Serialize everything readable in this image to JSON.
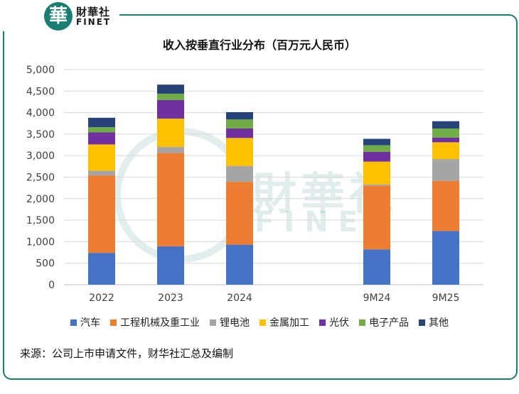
{
  "brand": {
    "logo_char": "華",
    "name_cn": "財華社",
    "name_en": "FINET",
    "color": "#1a7d72"
  },
  "chart_data": {
    "type": "bar",
    "stacked": true,
    "title": "收入按垂直行业分布（百万元人民币）",
    "categories": [
      "2022",
      "2023",
      "2024",
      "9M24",
      "9M25"
    ],
    "ylim": [
      0,
      5000
    ],
    "yticks": [
      "0",
      "500",
      "1,000",
      "1,500",
      "2,000",
      "2,500",
      "3,000",
      "3,500",
      "4,000",
      "4,500",
      "5,000"
    ],
    "ytick_values": [
      0,
      500,
      1000,
      1500,
      2000,
      2500,
      3000,
      3500,
      4000,
      4500,
      5000
    ],
    "grid": true,
    "legend_position": "bottom",
    "series": [
      {
        "name": "汽车",
        "color": "#4472c4",
        "values": [
          740,
          890,
          930,
          820,
          1250
        ]
      },
      {
        "name": "工程机械及重工业",
        "color": "#ed7d31",
        "values": [
          1800,
          2170,
          1460,
          1480,
          1160
        ]
      },
      {
        "name": "锂电池",
        "color": "#a5a5a5",
        "values": [
          110,
          140,
          370,
          30,
          510
        ]
      },
      {
        "name": "金属加工",
        "color": "#ffc000",
        "values": [
          610,
          660,
          650,
          530,
          390
        ]
      },
      {
        "name": "光伏",
        "color": "#7030a0",
        "values": [
          280,
          430,
          220,
          230,
          110
        ]
      },
      {
        "name": "电子产品",
        "color": "#70ad47",
        "values": [
          120,
          150,
          210,
          150,
          210
        ]
      },
      {
        "name": "其他",
        "color": "#264478",
        "values": [
          220,
          210,
          170,
          150,
          170
        ]
      }
    ]
  },
  "source": "来源：公司上市申请文件，财华社汇总及编制"
}
